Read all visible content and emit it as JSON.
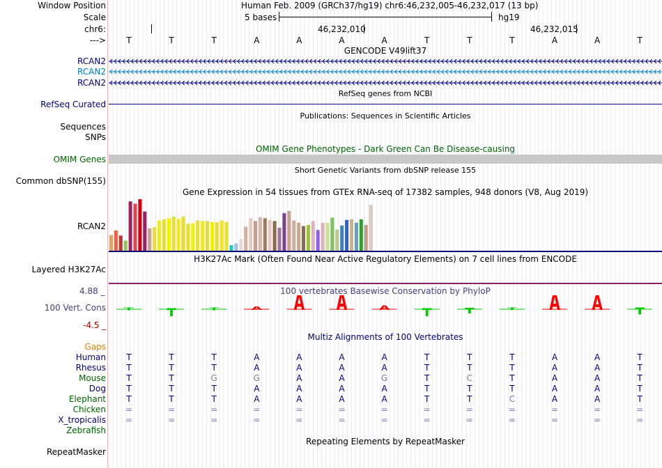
{
  "colors": {
    "navy": "#000080",
    "teal": "#0080c0",
    "green": "#006400",
    "orange": "#e08000",
    "conservation": "#40407f",
    "grey_bar": "#c8c8c8",
    "phylo_pos": "#00cc00",
    "phylo_neg": "#ff0000"
  },
  "ruler": {
    "window_label": "Window Position",
    "window_value": "Human Feb. 2009 (GRCh37/hg19)   chr6:46,232,005-46,232,017 (13 bp)",
    "scale_label": "Scale",
    "scale_value": "5 bases",
    "scale_db": "hg19",
    "chrom_label": "chr6:",
    "tick1": "46,232,010",
    "tick2": "46,232,015",
    "strand_label": "--->",
    "bases": [
      "T",
      "T",
      "T",
      "A",
      "A",
      "A",
      "A",
      "T",
      "T",
      "T",
      "A",
      "A",
      "T"
    ]
  },
  "gencode": {
    "title": "GENCODE V49lift37",
    "tracks": [
      {
        "label": "RCAN2",
        "color": "navy"
      },
      {
        "label": "RCAN2",
        "color": "teal"
      },
      {
        "label": "RCAN2",
        "color": "navy"
      }
    ]
  },
  "refseq": {
    "title": "RefSeq genes from NCBI",
    "label": "RefSeq Curated"
  },
  "pubs": {
    "title": "Publications: Sequences in Scientific Articles",
    "label1": "Sequences",
    "label2": "SNPs"
  },
  "omim": {
    "title": "OMIM Gene Phenotypes - Dark Green Can Be Disease-causing",
    "label": "OMIM Genes"
  },
  "dbsnp": {
    "title": "Short Genetic Variants from dbSNP release 155",
    "label": "Common dbSNP(155)"
  },
  "gtex": {
    "title": "Gene Expression in 54 tissues from GTEx RNA-seq of 17382 samples, 948 donors (V8, Aug 2019)",
    "label": "RCAN2",
    "values": [
      28,
      36,
      27,
      18,
      88,
      84,
      92,
      70,
      40,
      42,
      54,
      56,
      58,
      61,
      57,
      61,
      48,
      49,
      54,
      53,
      53,
      51,
      51,
      54,
      51,
      10,
      13,
      21,
      43,
      58,
      53,
      60,
      58,
      55,
      53,
      41,
      67,
      71,
      54,
      50,
      44,
      46,
      53,
      37,
      50,
      50,
      59,
      38,
      45,
      55,
      56,
      50,
      56,
      46,
      82
    ],
    "colors": [
      "#f0a050",
      "#f06040",
      "#c83030",
      "#90c060",
      "#a02060",
      "#e04050",
      "#d00010",
      "#a02060",
      "#c8a090",
      "#e8e030",
      "#f0e830",
      "#e8e020",
      "#f0f000",
      "#e8e030",
      "#f0e820",
      "#e8e030",
      "#e8e020",
      "#f0f010",
      "#e8e030",
      "#f0e820",
      "#e8e030",
      "#f0f000",
      "#e8e030",
      "#f0e820",
      "#e8e030",
      "#20c8c8",
      "#a0c0e0",
      "#e8d8d8",
      "#d0b0a0",
      "#e8c8c0",
      "#c0a090",
      "#d8b8a8",
      "#9c7c5c",
      "#e8c8c0",
      "#8a6a4a",
      "#a070a0",
      "#80408a",
      "#c8a090",
      "#d0b0a0",
      "#c8a890",
      "#8c6c4c",
      "#a0c040",
      "#e0b0c0",
      "#9060e0",
      "#e0b0b0",
      "#c8e0a0",
      "#80c060",
      "#b0d080",
      "#4080c0",
      "#3060d0",
      "#c8b090",
      "#60a0c0",
      "#30a030",
      "#c0a080",
      "#e0c8c0"
    ]
  },
  "h3k27ac": {
    "title": "H3K27Ac Mark (Often Found Near Active Regulatory Elements) on 7 cell lines from ENCODE",
    "label": "Layered H3K27Ac"
  },
  "phylop": {
    "title": "100 vertebrates Basewise Conservation by PhyloP",
    "label": "100 Vert. Cons",
    "max": "4.88 _",
    "min": "-4.5 _",
    "scores": [
      0.3,
      1.1,
      0.3,
      -0.4,
      -1.9,
      -1.9,
      -0.5,
      1.1,
      0.6,
      0.2,
      -1.9,
      -1.7,
      0.8
    ]
  },
  "multiz": {
    "title": "Multiz Alignments of 100 Vertebrates",
    "gaps_label": "Gaps",
    "species": [
      {
        "name": "Human",
        "color": "navy",
        "bases": [
          "T",
          "T",
          "T",
          "A",
          "A",
          "A",
          "A",
          "T",
          "T",
          "T",
          "A",
          "A",
          "T"
        ]
      },
      {
        "name": "Rhesus",
        "color": "navy",
        "bases": [
          "T",
          "T",
          "T",
          "A",
          "A",
          "A",
          "A",
          "T",
          "T",
          "T",
          "A",
          "A",
          "T"
        ]
      },
      {
        "name": "Mouse",
        "color": "green",
        "bases": [
          "T",
          "T",
          "G",
          "G",
          "A",
          "A",
          "G",
          "T",
          "C",
          "T",
          "A",
          "A",
          "T"
        ]
      },
      {
        "name": "Dog",
        "color": "navy",
        "bases": [
          "T",
          "T",
          "T",
          "A",
          "A",
          "A",
          "A",
          "T",
          "T",
          "T",
          "A",
          "A",
          "T"
        ]
      },
      {
        "name": "Elephant",
        "color": "green",
        "bases": [
          "T",
          "T",
          "T",
          "A",
          "A",
          "A",
          "A",
          "T",
          "T",
          "C",
          "A",
          "A",
          "T"
        ]
      },
      {
        "name": "Chicken",
        "color": "green",
        "bases": [
          "=",
          "=",
          "=",
          "=",
          "=",
          "=",
          "=",
          "=",
          "=",
          "=",
          "=",
          "=",
          "="
        ]
      },
      {
        "name": "X_tropicalis",
        "color": "navy",
        "bases": [
          "=",
          "=",
          "=",
          "=",
          "=",
          "=",
          "=",
          "=",
          "=",
          "=",
          "=",
          "=",
          "="
        ]
      },
      {
        "name": "Zebrafish",
        "color": "green",
        "bases": [
          "",
          "",
          "",
          "",
          "",
          "",
          "",
          "",
          "",
          "",
          "",
          "",
          ""
        ]
      }
    ]
  },
  "rmsk": {
    "title": "Repeating Elements by RepeatMasker",
    "label": "RepeatMasker"
  }
}
